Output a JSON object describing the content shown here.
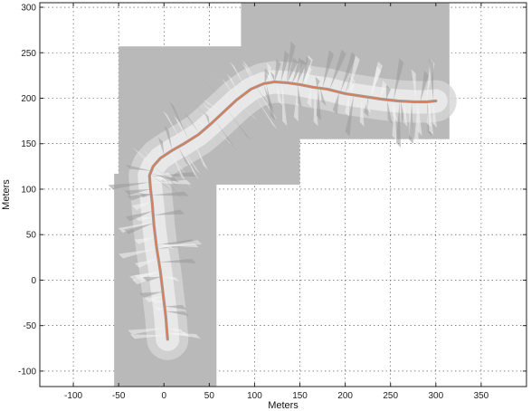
{
  "chart_data": {
    "type": "map",
    "title": "",
    "xlabel": "Meters",
    "ylabel": "Meters",
    "xlim": [
      -137,
      400
    ],
    "ylim": [
      -117,
      305
    ],
    "xticks": [
      -100,
      -50,
      0,
      50,
      100,
      150,
      200,
      250,
      300,
      350
    ],
    "yticks": [
      -100,
      -50,
      0,
      50,
      100,
      150,
      200,
      250,
      300
    ],
    "grid": true,
    "colors": {
      "unknown_region": "#b9b9b9",
      "mapped_region": "#e8e8e8",
      "trajectory": "#e07a50"
    },
    "map_regions": [
      {
        "x": [
          -55,
          58
        ],
        "y": [
          -117,
          117
        ]
      },
      {
        "x": [
          -50,
          150
        ],
        "y": [
          105,
          257
        ]
      },
      {
        "x": [
          85,
          315
        ],
        "y": [
          155,
          305
        ]
      }
    ],
    "trajectory": {
      "x": [
        4,
        2,
        -1,
        -4,
        -8,
        -11,
        -13,
        -15,
        -16,
        -12,
        -4,
        8,
        22,
        38,
        52,
        66,
        80,
        96,
        110,
        122,
        136,
        150,
        165,
        180,
        200,
        220,
        240,
        258,
        276,
        290,
        300
      ],
      "y": [
        -65,
        -40,
        -15,
        10,
        35,
        60,
        85,
        102,
        115,
        125,
        134,
        142,
        150,
        160,
        172,
        185,
        198,
        210,
        216,
        218,
        217,
        215,
        212,
        210,
        205,
        202,
        199,
        197,
        196,
        196,
        197
      ]
    }
  }
}
